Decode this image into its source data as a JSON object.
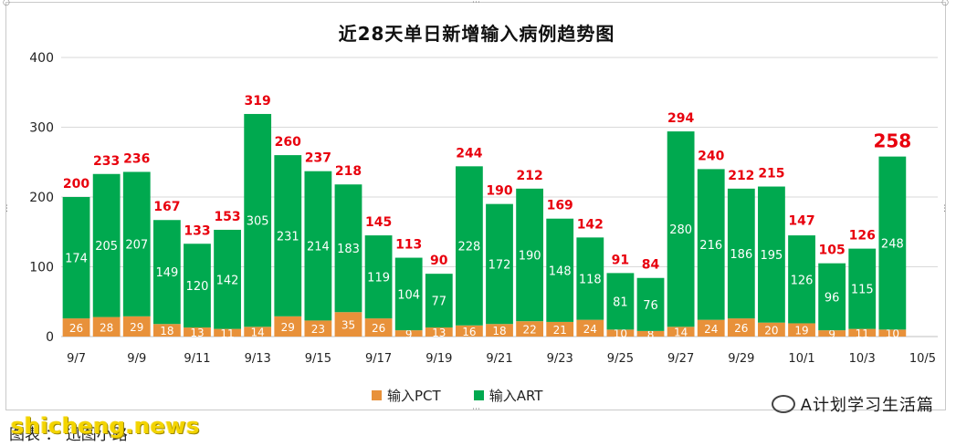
{
  "window": {
    "title": "近28天单日新增输入病例趋势图"
  },
  "legend": {
    "items": [
      {
        "label": "输入PCT",
        "color": "#E8913A"
      },
      {
        "label": "输入ART",
        "color": "#00A94F"
      }
    ]
  },
  "watermark": {
    "text": "A计划学习生活篇",
    "icon": "wechat-icon"
  },
  "site_mark": "shicheng.news",
  "caption": "图表 ： 迅图小路",
  "chart_data": {
    "type": "bar",
    "stacked": true,
    "title": "近28天单日新增输入病例趋势图",
    "categories": [
      "9/7",
      "9/8",
      "9/9",
      "9/10",
      "9/11",
      "9/12",
      "9/13",
      "9/14",
      "9/15",
      "9/16",
      "9/17",
      "9/18",
      "9/19",
      "9/20",
      "9/21",
      "9/22",
      "9/23",
      "9/24",
      "9/25",
      "9/26",
      "9/27",
      "9/28",
      "9/29",
      "9/30",
      "10/1",
      "10/2",
      "10/3",
      "10/4",
      "10/5"
    ],
    "x_tick_labels": [
      "9/7",
      "9/9",
      "9/11",
      "9/13",
      "9/15",
      "9/17",
      "9/19",
      "9/21",
      "9/23",
      "9/25",
      "9/27",
      "9/29",
      "10/1",
      "10/3",
      "10/5"
    ],
    "series": [
      {
        "name": "输入PCT",
        "color": "#E8913A",
        "values": [
          26,
          28,
          29,
          18,
          13,
          11,
          14,
          29,
          23,
          35,
          26,
          9,
          13,
          16,
          18,
          22,
          21,
          24,
          10,
          8,
          14,
          24,
          26,
          20,
          19,
          9,
          11,
          10,
          null
        ]
      },
      {
        "name": "输入ART",
        "color": "#00A94F",
        "values": [
          174,
          205,
          207,
          149,
          120,
          142,
          305,
          231,
          214,
          183,
          119,
          104,
          77,
          228,
          172,
          190,
          148,
          118,
          81,
          76,
          280,
          216,
          186,
          195,
          126,
          96,
          115,
          248,
          null
        ]
      }
    ],
    "totals": [
      200,
      233,
      236,
      167,
      133,
      153,
      319,
      260,
      237,
      218,
      145,
      113,
      90,
      244,
      190,
      212,
      169,
      142,
      91,
      84,
      294,
      240,
      212,
      215,
      147,
      105,
      126,
      258,
      null
    ],
    "total_label_color": "#E8000D",
    "highlight_last_total": true,
    "ylim": [
      0,
      400
    ],
    "y_ticks": [
      0,
      100,
      200,
      300,
      400
    ],
    "grid": "horizontal",
    "legend_position": "bottom"
  }
}
